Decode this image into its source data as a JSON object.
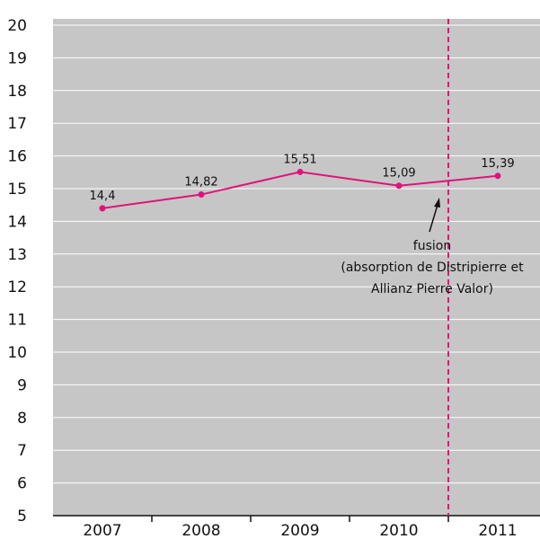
{
  "chart_data": {
    "type": "line",
    "title": "",
    "xlabel": "",
    "ylabel": "",
    "categories": [
      "2007",
      "2008",
      "2009",
      "2010",
      "2011"
    ],
    "series": [
      {
        "values": [
          14.4,
          14.82,
          15.51,
          15.09,
          15.39
        ],
        "labels": [
          "14,4",
          "14,82",
          "15,51",
          "15,09",
          "15,39"
        ],
        "color": "#e0137a"
      }
    ],
    "ylim": [
      5,
      20
    ],
    "yticks": [
      "5",
      "6",
      "7",
      "8",
      "9",
      "10",
      "11",
      "12",
      "13",
      "14",
      "15",
      "16",
      "17",
      "18",
      "19",
      "20"
    ],
    "grid": "horizontal",
    "background_color": "#c6c6c6",
    "event_marker": {
      "position": "between 2010 and 2011",
      "style": "dashed vertical line",
      "color": "#e0137a",
      "annotation_lines": [
        "fusion",
        "(absorption de Distripierre et",
        "Allianz Pierre Valor)"
      ]
    }
  }
}
